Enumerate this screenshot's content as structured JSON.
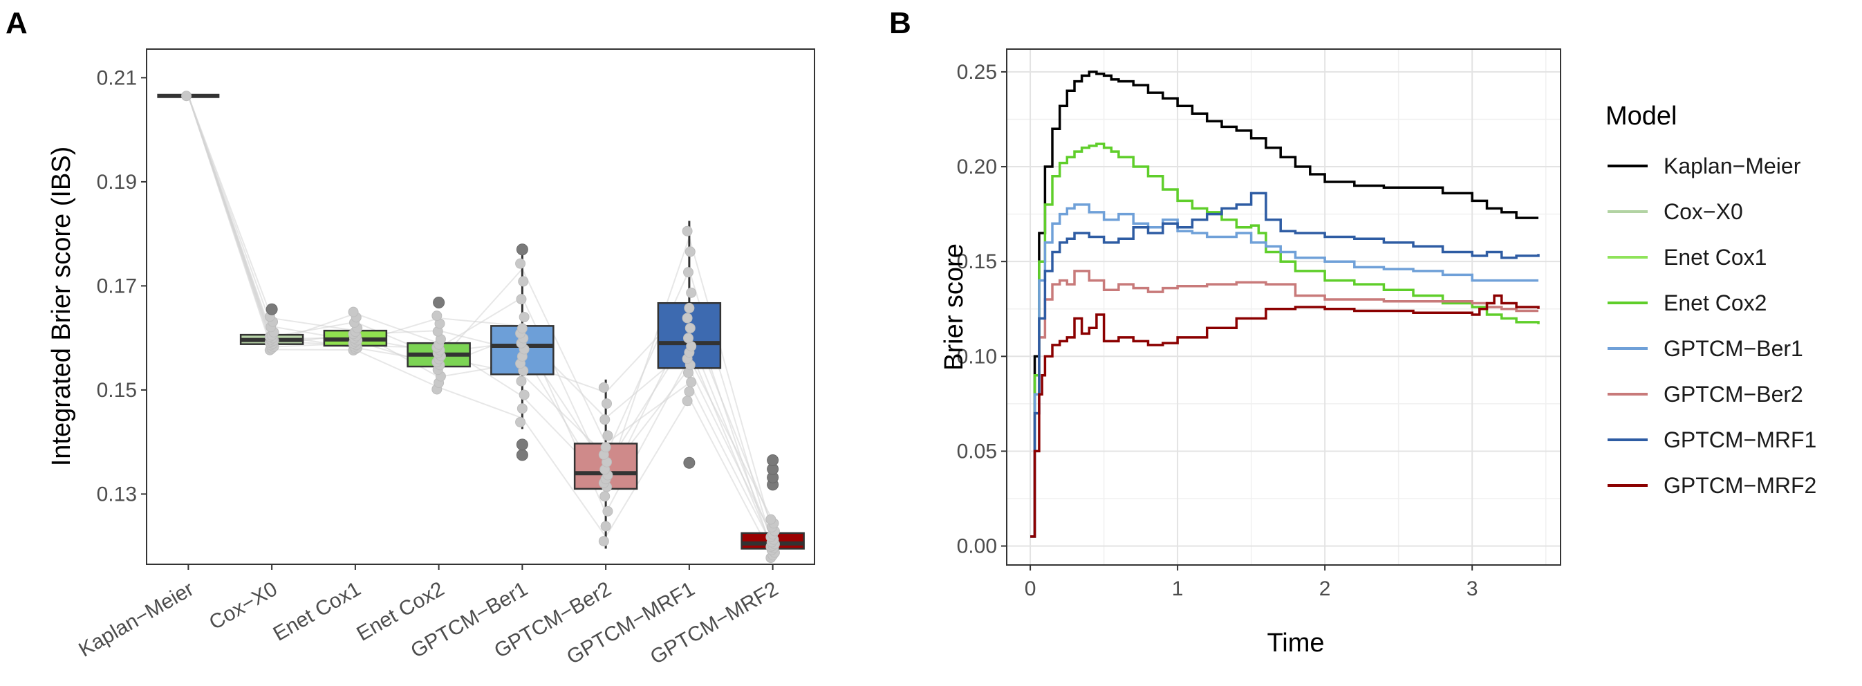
{
  "panels": {
    "a_label": "A",
    "b_label": "B"
  },
  "chart_data": [
    {
      "type": "box",
      "title": "",
      "xlabel": "",
      "ylabel": "Integrated Brier score (IBS)",
      "ylim": [
        0.1165,
        0.2155
      ],
      "yticks": [
        "0.13",
        "0.15",
        "0.17",
        "0.19",
        "0.21"
      ],
      "categories": [
        "Kaplan−Meier",
        "Cox−X0",
        "Enet Cox1",
        "Enet Cox2",
        "GPTCM−Ber1",
        "GPTCM−Ber2",
        "GPTCM−MRF1",
        "GPTCM−MRF2"
      ],
      "colors": [
        "#8a8a8a",
        "#b8d4a8",
        "#90e050",
        "#7cd454",
        "#6d9fd8",
        "#cf8a8a",
        "#3d6ab0",
        "#9b0000"
      ],
      "boxes": [
        {
          "min": 0.2065,
          "q1": 0.2065,
          "median": 0.2065,
          "q3": 0.2065,
          "max": 0.2065,
          "outliers": []
        },
        {
          "min": 0.1575,
          "q1": 0.1588,
          "median": 0.1596,
          "q3": 0.1606,
          "max": 0.1646,
          "outliers": [
            0.1655
          ]
        },
        {
          "min": 0.1575,
          "q1": 0.1585,
          "median": 0.1597,
          "q3": 0.1614,
          "max": 0.1655,
          "outliers": []
        },
        {
          "min": 0.1495,
          "q1": 0.1545,
          "median": 0.1568,
          "q3": 0.159,
          "max": 0.165,
          "outliers": [
            0.1668
          ]
        },
        {
          "min": 0.1425,
          "q1": 0.153,
          "median": 0.1585,
          "q3": 0.1623,
          "max": 0.176,
          "outliers": [
            0.177,
            0.1375,
            0.1395
          ]
        },
        {
          "min": 0.1195,
          "q1": 0.131,
          "median": 0.134,
          "q3": 0.1397,
          "max": 0.152,
          "outliers": []
        },
        {
          "min": 0.147,
          "q1": 0.1542,
          "median": 0.159,
          "q3": 0.1667,
          "max": 0.1825,
          "outliers": [
            0.136
          ]
        },
        {
          "min": 0.1175,
          "q1": 0.1195,
          "median": 0.1205,
          "q3": 0.1225,
          "max": 0.1255,
          "outliers": [
            0.1318,
            0.1332,
            0.1348,
            0.1365
          ]
        }
      ]
    },
    {
      "type": "line",
      "title": "",
      "xlabel": "Time",
      "ylabel": "Brier score",
      "xlim": [
        -0.16,
        3.6
      ],
      "ylim": [
        -0.01,
        0.262
      ],
      "xticks": [
        "0",
        "1",
        "2",
        "3"
      ],
      "yticks": [
        "0.00",
        "0.05",
        "0.10",
        "0.15",
        "0.20",
        "0.25"
      ],
      "legend_title": "Model",
      "series": [
        {
          "name": "Kaplan−Meier",
          "color": "#000000",
          "x": [
            0.0,
            0.03,
            0.06,
            0.1,
            0.15,
            0.2,
            0.25,
            0.3,
            0.35,
            0.4,
            0.45,
            0.5,
            0.55,
            0.6,
            0.7,
            0.8,
            0.9,
            1.0,
            1.1,
            1.2,
            1.3,
            1.4,
            1.5,
            1.6,
            1.7,
            1.8,
            1.9,
            2.0,
            2.2,
            2.4,
            2.6,
            2.8,
            3.0,
            3.1,
            3.2,
            3.3,
            3.45
          ],
          "y": [
            0.005,
            0.1,
            0.165,
            0.2,
            0.22,
            0.232,
            0.24,
            0.245,
            0.248,
            0.25,
            0.249,
            0.248,
            0.246,
            0.245,
            0.243,
            0.239,
            0.236,
            0.232,
            0.228,
            0.224,
            0.221,
            0.219,
            0.215,
            0.21,
            0.205,
            0.2,
            0.196,
            0.192,
            0.19,
            0.189,
            0.189,
            0.186,
            0.182,
            0.178,
            0.176,
            0.173,
            0.173
          ]
        },
        {
          "name": "Cox−X0",
          "color": "#b2d3a3",
          "x": [],
          "y": []
        },
        {
          "name": "Enet Cox1",
          "color": "#8fe35a",
          "x": [],
          "y": []
        },
        {
          "name": "Enet Cox2",
          "color": "#5fce2a",
          "x": [
            0.0,
            0.03,
            0.06,
            0.1,
            0.15,
            0.2,
            0.25,
            0.3,
            0.35,
            0.4,
            0.45,
            0.5,
            0.55,
            0.6,
            0.7,
            0.8,
            0.9,
            1.0,
            1.1,
            1.2,
            1.3,
            1.4,
            1.5,
            1.55,
            1.6,
            1.7,
            1.8,
            2.0,
            2.2,
            2.4,
            2.6,
            2.8,
            3.0,
            3.1,
            3.2,
            3.3,
            3.45
          ],
          "y": [
            0.005,
            0.09,
            0.15,
            0.18,
            0.195,
            0.202,
            0.205,
            0.208,
            0.21,
            0.211,
            0.212,
            0.21,
            0.208,
            0.205,
            0.2,
            0.195,
            0.188,
            0.182,
            0.178,
            0.176,
            0.172,
            0.168,
            0.169,
            0.165,
            0.155,
            0.15,
            0.145,
            0.14,
            0.138,
            0.135,
            0.132,
            0.128,
            0.126,
            0.122,
            0.12,
            0.118,
            0.117
          ]
        },
        {
          "name": "GPTCM−Ber1",
          "color": "#6fa0d8",
          "x": [
            0.0,
            0.03,
            0.06,
            0.1,
            0.15,
            0.2,
            0.25,
            0.3,
            0.4,
            0.5,
            0.6,
            0.7,
            0.8,
            0.9,
            1.0,
            1.1,
            1.2,
            1.3,
            1.4,
            1.5,
            1.6,
            1.7,
            1.8,
            2.0,
            2.2,
            2.4,
            2.6,
            2.8,
            3.0,
            3.2,
            3.45
          ],
          "y": [
            0.005,
            0.08,
            0.14,
            0.16,
            0.17,
            0.175,
            0.178,
            0.18,
            0.176,
            0.172,
            0.175,
            0.17,
            0.168,
            0.172,
            0.166,
            0.165,
            0.163,
            0.163,
            0.165,
            0.16,
            0.158,
            0.155,
            0.152,
            0.15,
            0.147,
            0.146,
            0.145,
            0.143,
            0.14,
            0.14,
            0.14
          ]
        },
        {
          "name": "GPTCM−Ber2",
          "color": "#c87a7a",
          "x": [
            0.0,
            0.03,
            0.06,
            0.1,
            0.15,
            0.2,
            0.25,
            0.3,
            0.4,
            0.5,
            0.6,
            0.7,
            0.8,
            0.9,
            1.0,
            1.2,
            1.4,
            1.6,
            1.8,
            2.0,
            2.2,
            2.4,
            2.6,
            2.8,
            3.0,
            3.1,
            3.2,
            3.3,
            3.45
          ],
          "y": [
            0.005,
            0.07,
            0.11,
            0.13,
            0.138,
            0.14,
            0.138,
            0.145,
            0.14,
            0.135,
            0.138,
            0.136,
            0.134,
            0.136,
            0.137,
            0.138,
            0.139,
            0.138,
            0.132,
            0.13,
            0.13,
            0.129,
            0.129,
            0.129,
            0.128,
            0.126,
            0.125,
            0.124,
            0.124
          ]
        },
        {
          "name": "GPTCM−MRF1",
          "color": "#2e5ca3",
          "x": [
            0.0,
            0.03,
            0.06,
            0.1,
            0.15,
            0.2,
            0.25,
            0.3,
            0.4,
            0.5,
            0.6,
            0.7,
            0.8,
            0.9,
            1.0,
            1.1,
            1.2,
            1.3,
            1.4,
            1.5,
            1.6,
            1.7,
            1.8,
            2.0,
            2.2,
            2.4,
            2.6,
            2.8,
            3.0,
            3.1,
            3.2,
            3.3,
            3.45
          ],
          "y": [
            0.005,
            0.07,
            0.12,
            0.145,
            0.155,
            0.16,
            0.162,
            0.165,
            0.163,
            0.16,
            0.162,
            0.168,
            0.165,
            0.17,
            0.168,
            0.172,
            0.175,
            0.178,
            0.18,
            0.186,
            0.172,
            0.166,
            0.165,
            0.163,
            0.162,
            0.16,
            0.158,
            0.155,
            0.153,
            0.155,
            0.152,
            0.153,
            0.154
          ]
        },
        {
          "name": "GPTCM−MRF2",
          "color": "#8b0000",
          "x": [
            0.0,
            0.03,
            0.06,
            0.08,
            0.1,
            0.15,
            0.2,
            0.25,
            0.3,
            0.35,
            0.4,
            0.45,
            0.5,
            0.6,
            0.7,
            0.8,
            0.9,
            1.0,
            1.2,
            1.4,
            1.6,
            1.8,
            2.0,
            2.2,
            2.4,
            2.6,
            2.8,
            3.0,
            3.05,
            3.1,
            3.15,
            3.2,
            3.3,
            3.45
          ],
          "y": [
            0.005,
            0.05,
            0.08,
            0.09,
            0.1,
            0.106,
            0.108,
            0.11,
            0.12,
            0.112,
            0.115,
            0.122,
            0.108,
            0.11,
            0.108,
            0.106,
            0.107,
            0.11,
            0.115,
            0.12,
            0.125,
            0.126,
            0.125,
            0.124,
            0.124,
            0.123,
            0.123,
            0.122,
            0.125,
            0.128,
            0.132,
            0.128,
            0.126,
            0.125
          ]
        }
      ]
    }
  ]
}
